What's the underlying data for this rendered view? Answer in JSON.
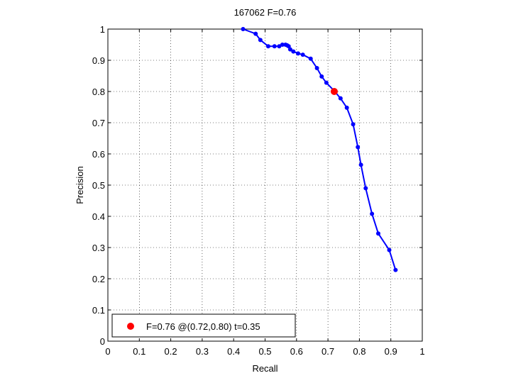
{
  "chart_data": {
    "type": "line",
    "title": "167062 F=0.76",
    "xlabel": "Recall",
    "ylabel": "Precision",
    "xlim": [
      0,
      1
    ],
    "ylim": [
      0,
      1
    ],
    "grid": true,
    "x_ticks": [
      "0",
      "0.1",
      "0.2",
      "0.3",
      "0.4",
      "0.5",
      "0.6",
      "0.7",
      "0.8",
      "0.9",
      "1"
    ],
    "y_ticks": [
      "0",
      "0.1",
      "0.2",
      "0.3",
      "0.4",
      "0.5",
      "0.6",
      "0.7",
      "0.8",
      "0.9",
      "1"
    ],
    "series": [
      {
        "color": "#0000ff",
        "points": [
          [
            0.43,
            1.0
          ],
          [
            0.47,
            0.985
          ],
          [
            0.485,
            0.965
          ],
          [
            0.51,
            0.945
          ],
          [
            0.53,
            0.945
          ],
          [
            0.545,
            0.945
          ],
          [
            0.555,
            0.95
          ],
          [
            0.565,
            0.95
          ],
          [
            0.57,
            0.948
          ],
          [
            0.575,
            0.945
          ],
          [
            0.58,
            0.935
          ],
          [
            0.59,
            0.928
          ],
          [
            0.605,
            0.922
          ],
          [
            0.62,
            0.918
          ],
          [
            0.645,
            0.905
          ],
          [
            0.665,
            0.875
          ],
          [
            0.68,
            0.848
          ],
          [
            0.695,
            0.828
          ],
          [
            0.72,
            0.802
          ],
          [
            0.74,
            0.778
          ],
          [
            0.76,
            0.748
          ],
          [
            0.78,
            0.695
          ],
          [
            0.795,
            0.622
          ],
          [
            0.805,
            0.565
          ],
          [
            0.82,
            0.49
          ],
          [
            0.84,
            0.408
          ],
          [
            0.86,
            0.345
          ],
          [
            0.895,
            0.292
          ],
          [
            0.915,
            0.228
          ]
        ]
      }
    ],
    "highlight": {
      "color": "#ff0000",
      "point": [
        0.72,
        0.8
      ],
      "label": "F=0.76 @(0.72,0.80) t=0.35"
    },
    "legend_position": "bottom-left"
  }
}
